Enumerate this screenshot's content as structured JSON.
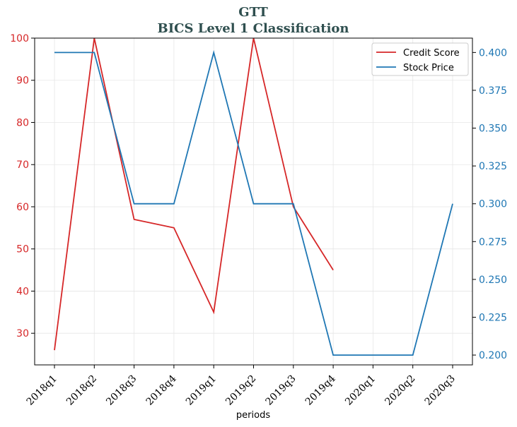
{
  "chart_data": {
    "type": "line",
    "title": "GTT",
    "subtitle": "BICS Level 1 Classification",
    "xlabel": "periods",
    "categories": [
      "2018q1",
      "2018q2",
      "2018q3",
      "2018q4",
      "2019q1",
      "2019q2",
      "2019q3",
      "2019q4",
      "2020q1",
      "2020q2",
      "2020q3"
    ],
    "left_axis": {
      "ylim": [
        22.5,
        100
      ],
      "ticks": [
        30,
        40,
        50,
        60,
        70,
        80,
        90,
        100
      ],
      "color": "#d62728"
    },
    "right_axis": {
      "ylim": [
        0.1935,
        0.4095
      ],
      "ticks": [
        "0.200",
        "0.225",
        "0.250",
        "0.275",
        "0.300",
        "0.325",
        "0.350",
        "0.375",
        "0.400"
      ],
      "color": "#1f77b4"
    },
    "series": [
      {
        "name": "Credit Score",
        "axis": "left",
        "color": "#d62728",
        "values": [
          26,
          100,
          57,
          55,
          35,
          100,
          60,
          45,
          null,
          null,
          null
        ]
      },
      {
        "name": "Stock Price",
        "axis": "right",
        "color": "#1f77b4",
        "values": [
          0.4,
          0.4,
          0.3,
          0.3,
          0.4,
          0.3,
          0.3,
          0.2,
          0.2,
          0.2,
          0.3
        ]
      }
    ],
    "grid": true,
    "legend_position": "top-right"
  }
}
